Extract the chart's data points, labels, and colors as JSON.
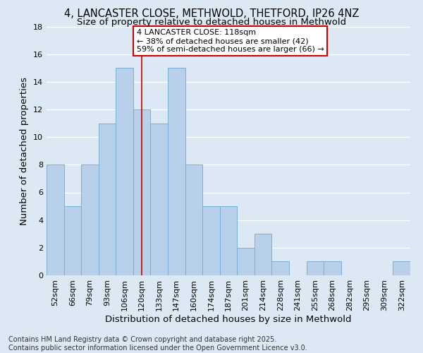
{
  "title_line1": "4, LANCASTER CLOSE, METHWOLD, THETFORD, IP26 4NZ",
  "title_line2": "Size of property relative to detached houses in Methwold",
  "xlabel": "Distribution of detached houses by size in Methwold",
  "ylabel": "Number of detached properties",
  "footnote": "Contains HM Land Registry data © Crown copyright and database right 2025.\nContains public sector information licensed under the Open Government Licence v3.0.",
  "bar_labels": [
    "52sqm",
    "66sqm",
    "79sqm",
    "93sqm",
    "106sqm",
    "120sqm",
    "133sqm",
    "147sqm",
    "160sqm",
    "174sqm",
    "187sqm",
    "201sqm",
    "214sqm",
    "228sqm",
    "241sqm",
    "255sqm",
    "268sqm",
    "282sqm",
    "295sqm",
    "309sqm",
    "322sqm"
  ],
  "bar_values": [
    8,
    5,
    8,
    11,
    15,
    12,
    11,
    15,
    8,
    5,
    5,
    2,
    3,
    1,
    0,
    1,
    1,
    0,
    0,
    0,
    1
  ],
  "bar_color": "#b8d0ea",
  "bar_edge_color": "#7aafd4",
  "bg_color": "#dce9f5",
  "plot_bg_color": "#dce9f5",
  "grid_color": "#ffffff",
  "ylim": [
    0,
    18
  ],
  "yticks": [
    0,
    2,
    4,
    6,
    8,
    10,
    12,
    14,
    16,
    18
  ],
  "red_line_index": 5,
  "annotation_text": "4 LANCASTER CLOSE: 118sqm\n← 38% of detached houses are smaller (42)\n59% of semi-detached houses are larger (66) →",
  "annotation_box_color": "#ffffff",
  "annotation_box_edge": "#cc0000",
  "red_line_color": "#cc0000",
  "title_fontsize": 10.5,
  "subtitle_fontsize": 9.5,
  "tick_fontsize": 8,
  "axis_label_fontsize": 9.5,
  "footnote_fontsize": 7,
  "annotation_fontsize": 8
}
